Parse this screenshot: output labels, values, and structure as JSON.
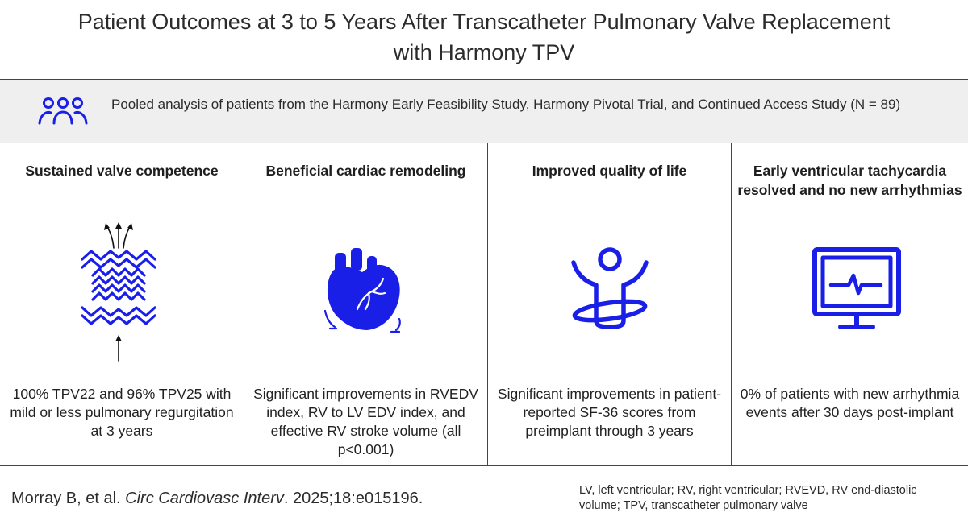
{
  "title": {
    "line1": "Patient Outcomes at 3 to 5 Years After Transcatheter Pulmonary Valve Replacement",
    "line2": "with Harmony TPV"
  },
  "banner": {
    "icon": "people-group-icon",
    "text": "Pooled analysis of patients from the Harmony Early Feasibility Study, Harmony Pivotal Trial, and Continued Access Study (N = 89)"
  },
  "columns": [
    {
      "heading": "Sustained valve competence",
      "icon": "valve-stent-icon",
      "description": "100% TPV22 and 96% TPV25 with mild or less pulmonary regurgitation at 3 years"
    },
    {
      "heading": "Beneficial cardiac remodeling",
      "icon": "heart-icon",
      "description": "Significant improvements in RVEDV index, RV to LV EDV index, and effective RV stroke volume (all p<0.001)"
    },
    {
      "heading": "Improved quality of life",
      "icon": "person-uplifted-icon",
      "description": "Significant improvements in patient-reported SF-36 scores from preimplant through 3 years"
    },
    {
      "heading": "Early ventricular tachycardia resolved and no new arrhythmias",
      "icon": "monitor-ecg-icon",
      "description": "0% of patients with new arrhythmia events after 30 days post-implant"
    }
  ],
  "citation": {
    "authors": "Morray B, et al. ",
    "journal": "Circ Cardiovasc Interv",
    "details": ". 2025;18:e015196."
  },
  "abbreviations": "LV, left ventricular; RV, right ventricular; RVEVD, RV end-diastolic volume; TPV, transcatheter pulmonary valve",
  "colors": {
    "icon_blue": "#1a1fe8",
    "divider": "#444444",
    "banner_bg": "#efefef"
  }
}
